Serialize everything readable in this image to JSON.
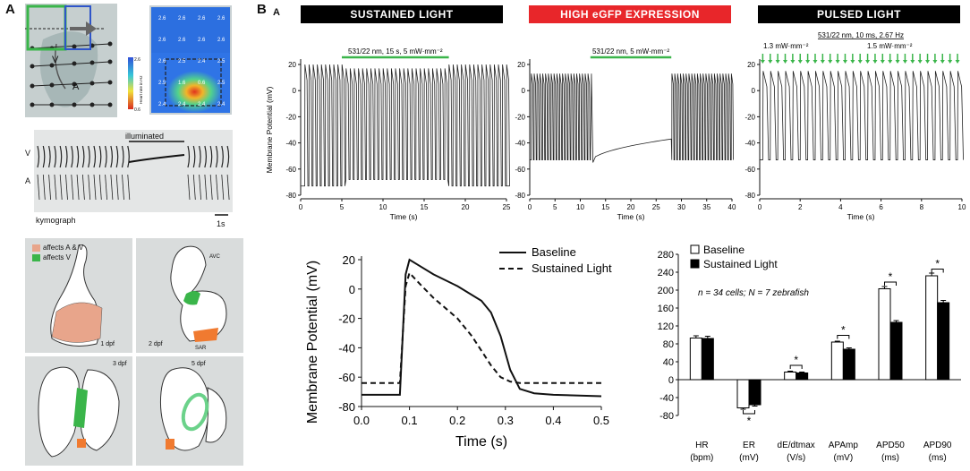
{
  "panel_a": {
    "letter": "A",
    "heart_labels": {
      "v": "V",
      "a": "A"
    },
    "heatmap": {
      "colorbar_label": "Heart rate in Hz",
      "colorbar_max": "2.6",
      "colorbar_min": "0.6",
      "cells": [
        [
          "2.6",
          "2.6",
          "2.6",
          "2.6"
        ],
        [
          "2.6",
          "2.6",
          "2.6",
          "2.6"
        ],
        [
          "2.6",
          "2.5",
          "2.4",
          "2.5"
        ],
        [
          "2.5",
          "1.6",
          "0.6",
          "2.5"
        ],
        [
          "2.4",
          "2.4",
          "2.4",
          "2.4"
        ]
      ]
    },
    "kymograph": {
      "v_label": "V",
      "a_label": "A",
      "illuminated": "illuminated",
      "caption": "kymograph",
      "scale": "1s"
    },
    "legend": {
      "a_and_v": "affects A & V",
      "v_only": "affects V",
      "color_av": "#e8a58b",
      "color_v": "#3ab54a"
    },
    "stages": {
      "s1": "1 dpf",
      "s2": "2 dpf",
      "s3": "3 dpf",
      "s5": "5 dpf",
      "avc": "AVC",
      "sar": "SAR"
    }
  },
  "panel_b": {
    "letter": "B",
    "sub_letter": "A",
    "headers": [
      {
        "label": "SUSTAINED LIGHT",
        "color": "#000000"
      },
      {
        "label": "HIGH eGFP EXPRESSION",
        "color": "#e8262a"
      },
      {
        "label": "PULSED LIGHT",
        "color": "#000000"
      }
    ],
    "stim_sustained": "531/22 nm, 15 s, 5 mW·mm⁻²",
    "stim_egfp": "531/22 nm, 5 mW·mm⁻²",
    "stim_pulsed": "531/22 nm, 10 ms, 2.67 Hz",
    "pulse_low": "1.3 mW·mm⁻²",
    "pulse_high": "1.5 mW·mm⁻²",
    "trace_ylabel": "Membrane Potential (mV)",
    "trace_xlabel": "Time (s)",
    "ap_legend": {
      "baseline": "Baseline",
      "sustained": "Sustained Light"
    },
    "ap_xlabel": "Time (s)",
    "ap_ylabel": "Membrane Potential (mV)",
    "bar_legend": {
      "baseline": "Baseline",
      "sustained": "Sustained Light"
    },
    "bar_note": "n = 34 cells; N = 7 zebrafish",
    "bar_cats": [
      {
        "name": "HR",
        "unit": "(bpm)"
      },
      {
        "name": "ER",
        "unit": "(mV)"
      },
      {
        "name": "dE/dtmax",
        "unit": "(V/s)"
      },
      {
        "name": "APAmp",
        "unit": "(mV)"
      },
      {
        "name": "APD50",
        "unit": "(ms)"
      },
      {
        "name": "APD90",
        "unit": "(ms)"
      }
    ],
    "star": "*"
  },
  "chart_data": [
    {
      "type": "line",
      "title": "SUSTAINED LIGHT",
      "xlabel": "Time (s)",
      "ylabel": "Membrane Potential (mV)",
      "xlim": [
        0,
        25
      ],
      "ylim": [
        -80,
        20
      ],
      "xticks": [
        0,
        5,
        10,
        15,
        20,
        25
      ],
      "yticks": [
        -80,
        -60,
        -40,
        -20,
        0,
        20
      ],
      "stimulus": {
        "start": 5,
        "end": 18
      },
      "rest_mv": -73,
      "peak_mv": 20,
      "light_rest_mv": -68,
      "light_peak_mv": 17,
      "beats": 50
    },
    {
      "type": "line",
      "title": "HIGH eGFP EXPRESSION",
      "xlabel": "Time (s)",
      "xlim": [
        0,
        40
      ],
      "ylim": [
        -80,
        20
      ],
      "xticks": [
        0,
        5,
        10,
        15,
        20,
        25,
        30,
        35,
        40
      ],
      "yticks": [
        -80,
        -60,
        -40,
        -20,
        0,
        20
      ],
      "stimulus": {
        "start": 12,
        "end": 28
      },
      "rest_mv": -53,
      "peak_mv": 13,
      "plateau_start_mv": -55,
      "plateau_end_mv": -37
    },
    {
      "type": "line",
      "title": "PULSED LIGHT",
      "xlabel": "Time (s)",
      "xlim": [
        0,
        10
      ],
      "ylim": [
        -80,
        20
      ],
      "xticks": [
        0,
        2,
        4,
        6,
        8,
        10
      ],
      "yticks": [
        -80,
        -60,
        -40,
        -20,
        0,
        20
      ],
      "rest_mv": -53,
      "peak_mv": 15,
      "beats": 27
    },
    {
      "type": "line",
      "xlabel": "Time (s)",
      "ylabel": "Membrane Potential (mV)",
      "xlim": [
        0,
        0.5
      ],
      "ylim": [
        -80,
        20
      ],
      "xticks": [
        0,
        0.1,
        0.2,
        0.3,
        0.4,
        0.5
      ],
      "yticks": [
        -80,
        -60,
        -40,
        -20,
        0,
        20
      ],
      "series": [
        {
          "name": "Baseline",
          "style": "solid",
          "x": [
            0,
            0.08,
            0.092,
            0.1,
            0.12,
            0.15,
            0.2,
            0.25,
            0.27,
            0.29,
            0.31,
            0.33,
            0.36,
            0.4,
            0.5
          ],
          "y": [
            -72,
            -72,
            10,
            20,
            16,
            10,
            2,
            -8,
            -16,
            -32,
            -55,
            -68,
            -71,
            -72,
            -73
          ]
        },
        {
          "name": "Sustained Light",
          "style": "dashed",
          "x": [
            0,
            0.08,
            0.092,
            0.1,
            0.12,
            0.15,
            0.2,
            0.23,
            0.25,
            0.27,
            0.29,
            0.31,
            0.33,
            0.4,
            0.5
          ],
          "y": [
            -64,
            -64,
            2,
            11,
            4,
            -6,
            -20,
            -32,
            -42,
            -52,
            -60,
            -63,
            -64,
            -64,
            -64
          ]
        }
      ]
    },
    {
      "type": "bar",
      "ylim": [
        -80,
        280
      ],
      "yticks": [
        -80,
        -40,
        0,
        40,
        80,
        120,
        160,
        200,
        240,
        280
      ],
      "categories": [
        "HR",
        "ER",
        "dE/dtmax",
        "APAmp",
        "APD50",
        "APD90"
      ],
      "series": [
        {
          "name": "Baseline",
          "values": [
            93,
            -63,
            17,
            84,
            203,
            232
          ],
          "errors": [
            5,
            3,
            2,
            2,
            5,
            6
          ]
        },
        {
          "name": "Sustained Light",
          "values": [
            92,
            -56,
            15,
            68,
            128,
            172
          ],
          "errors": [
            5,
            3,
            2,
            3,
            4,
            5
          ]
        }
      ],
      "significant": [
        false,
        true,
        true,
        true,
        true,
        true
      ]
    }
  ]
}
